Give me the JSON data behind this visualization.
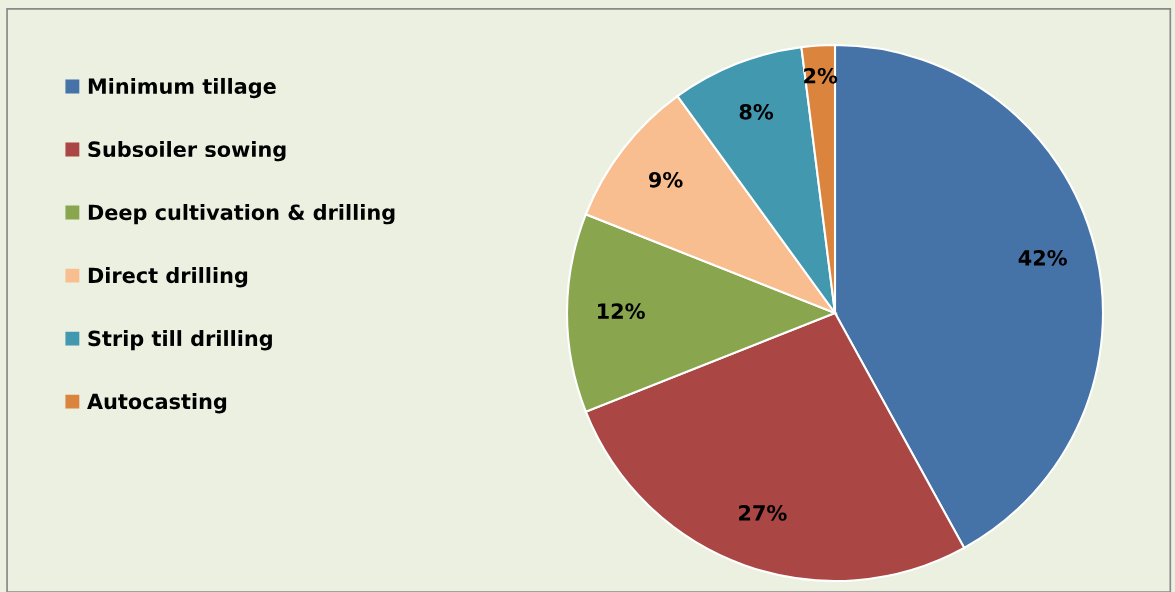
{
  "chart_data": {
    "type": "pie",
    "categories": [
      "Minimum tillage",
      "Subsoiler sowing",
      "Deep cultivation & drilling",
      "Direct drilling",
      "Strip till drilling",
      "Autocasting"
    ],
    "values": [
      42,
      27,
      12,
      9,
      8,
      2
    ],
    "colors": [
      "#4572a7",
      "#aa4643",
      "#89a54e",
      "#f9be8f",
      "#4198af",
      "#db843d"
    ],
    "value_labels": [
      "42%",
      "27%",
      "12%",
      "9%",
      "8%",
      "2%"
    ],
    "legend": "left"
  }
}
